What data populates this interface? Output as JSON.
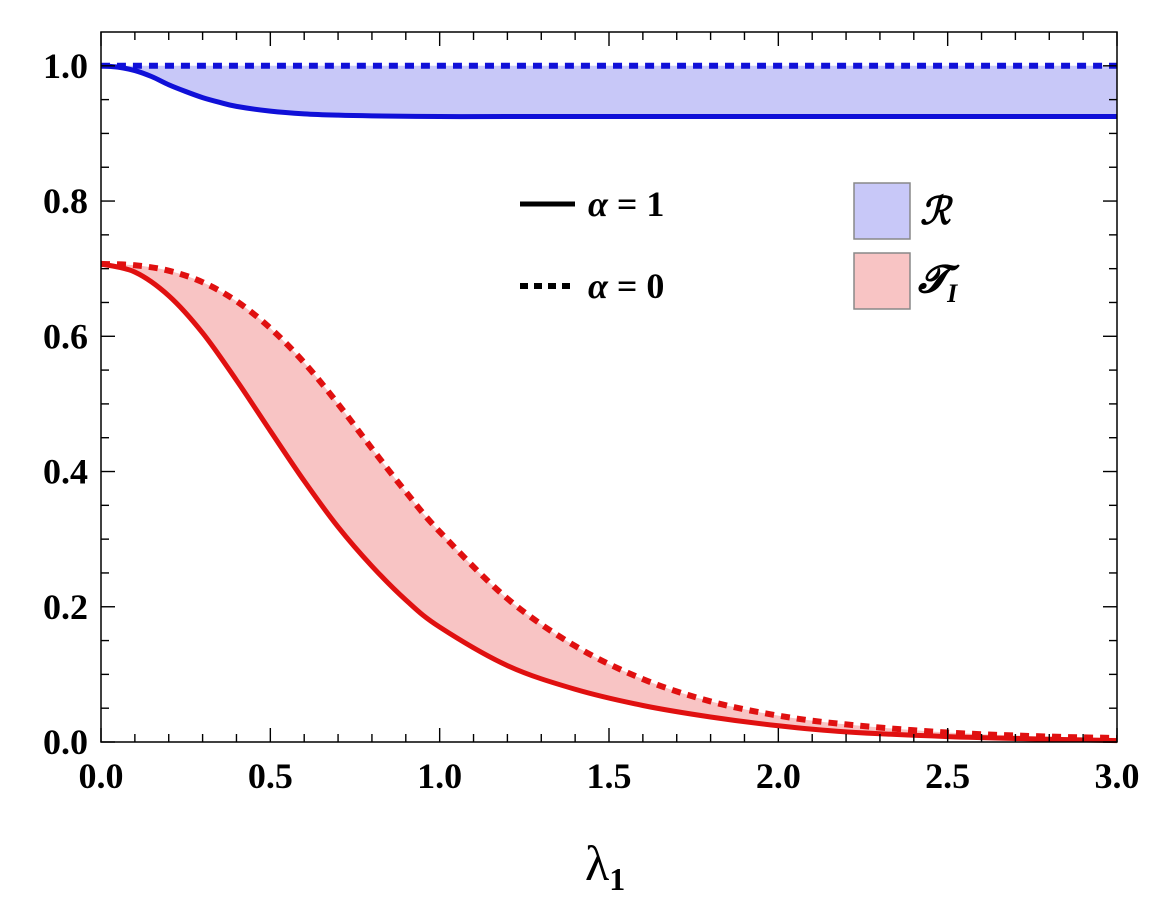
{
  "chart_data": {
    "type": "line",
    "xlabel": "λ",
    "xlabel_sub": "1",
    "ylabel": "",
    "xlim": [
      0,
      3
    ],
    "ylim": [
      0,
      1.05
    ],
    "x_ticks": [
      "0.0",
      "0.5",
      "1.0",
      "1.5",
      "2.0",
      "2.5",
      "3.0"
    ],
    "y_ticks": [
      "0.0",
      "0.2",
      "0.4",
      "0.6",
      "0.8",
      "1.0"
    ],
    "grid": false,
    "colors": {
      "blue": "#1010d8",
      "red": "#e01010",
      "blue_fill": "#c8c8f8",
      "red_fill": "#f8c4c4"
    },
    "legend": {
      "placement": "top-right",
      "line_styles": [
        {
          "style": "solid",
          "prefix": "α",
          "label": " = 1"
        },
        {
          "style": "dotted",
          "prefix": "α",
          "label": " = 0"
        }
      ],
      "bands": [
        {
          "symbol": "ℛ",
          "sub": "",
          "color": "blue"
        },
        {
          "symbol": "𝓣",
          "sub": "I",
          "color": "red"
        }
      ]
    },
    "series": [
      {
        "name": "ℛ",
        "style": "solid",
        "color": "blue",
        "x": [
          0,
          0.05,
          0.1,
          0.15,
          0.2,
          0.25,
          0.3,
          0.35,
          0.4,
          0.5,
          0.6,
          0.7,
          0.8,
          1.0,
          1.2,
          1.5,
          2.0,
          2.5,
          3.0
        ],
        "y": [
          1.0,
          0.998,
          0.993,
          0.984,
          0.972,
          0.962,
          0.953,
          0.946,
          0.94,
          0.933,
          0.929,
          0.927,
          0.926,
          0.925,
          0.925,
          0.925,
          0.925,
          0.925,
          0.925
        ]
      },
      {
        "name": "ℛ",
        "style": "dotted",
        "color": "blue",
        "x": [
          0,
          3.0
        ],
        "y": [
          1.0,
          1.0
        ]
      },
      {
        "name": "𝓣_I",
        "style": "solid",
        "color": "red",
        "x": [
          0,
          0.1,
          0.2,
          0.3,
          0.4,
          0.5,
          0.6,
          0.7,
          0.8,
          0.9,
          1.0,
          1.2,
          1.4,
          1.6,
          1.8,
          2.0,
          2.2,
          2.5,
          2.8,
          3.0
        ],
        "y": [
          0.707,
          0.695,
          0.66,
          0.605,
          0.535,
          0.46,
          0.386,
          0.318,
          0.26,
          0.21,
          0.17,
          0.113,
          0.078,
          0.054,
          0.037,
          0.024,
          0.015,
          0.008,
          0.004,
          0.002
        ]
      },
      {
        "name": "𝓣_I",
        "style": "dotted",
        "color": "red",
        "x": [
          0,
          0.1,
          0.2,
          0.3,
          0.4,
          0.5,
          0.6,
          0.7,
          0.8,
          0.9,
          1.0,
          1.2,
          1.4,
          1.6,
          1.8,
          2.0,
          2.2,
          2.5,
          2.8,
          3.0
        ],
        "y": [
          0.707,
          0.705,
          0.697,
          0.68,
          0.652,
          0.612,
          0.561,
          0.5,
          0.434,
          0.37,
          0.311,
          0.212,
          0.142,
          0.093,
          0.06,
          0.039,
          0.026,
          0.014,
          0.008,
          0.006
        ]
      }
    ]
  }
}
